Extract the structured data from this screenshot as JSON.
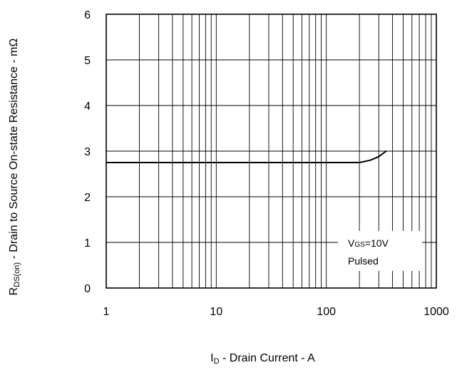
{
  "chart_data": {
    "type": "line",
    "x_scale": "log",
    "xlim": [
      1,
      1000
    ],
    "ylim": [
      0,
      6
    ],
    "grid": true,
    "x_ticks": [
      1,
      10,
      100,
      1000
    ],
    "x_tick_labels": [
      "1",
      "10",
      "100",
      "1000"
    ],
    "y_ticks": [
      0,
      1,
      2,
      3,
      4,
      5,
      6
    ],
    "y_tick_labels": [
      "0",
      "1",
      "2",
      "3",
      "4",
      "5",
      "6"
    ],
    "xlabel": {
      "main": "I",
      "sub": "D",
      "rest": " - Drain Current - A"
    },
    "ylabel": {
      "main": "R",
      "sub": "DS(on)",
      "rest": " - Drain to Source On-state Resistance - mΩ"
    },
    "series": [
      {
        "color": "#000000",
        "x": [
          1,
          2,
          5,
          10,
          20,
          50,
          100,
          150,
          200,
          250,
          300,
          350
        ],
        "y": [
          2.75,
          2.75,
          2.75,
          2.75,
          2.75,
          2.75,
          2.75,
          2.75,
          2.75,
          2.8,
          2.88,
          3.0
        ]
      }
    ],
    "annotation": {
      "line1_main": "V",
      "line1_sub": "GS",
      "line1_rest": "=10V",
      "line2": "Pulsed",
      "placement": "bottom-right"
    }
  }
}
